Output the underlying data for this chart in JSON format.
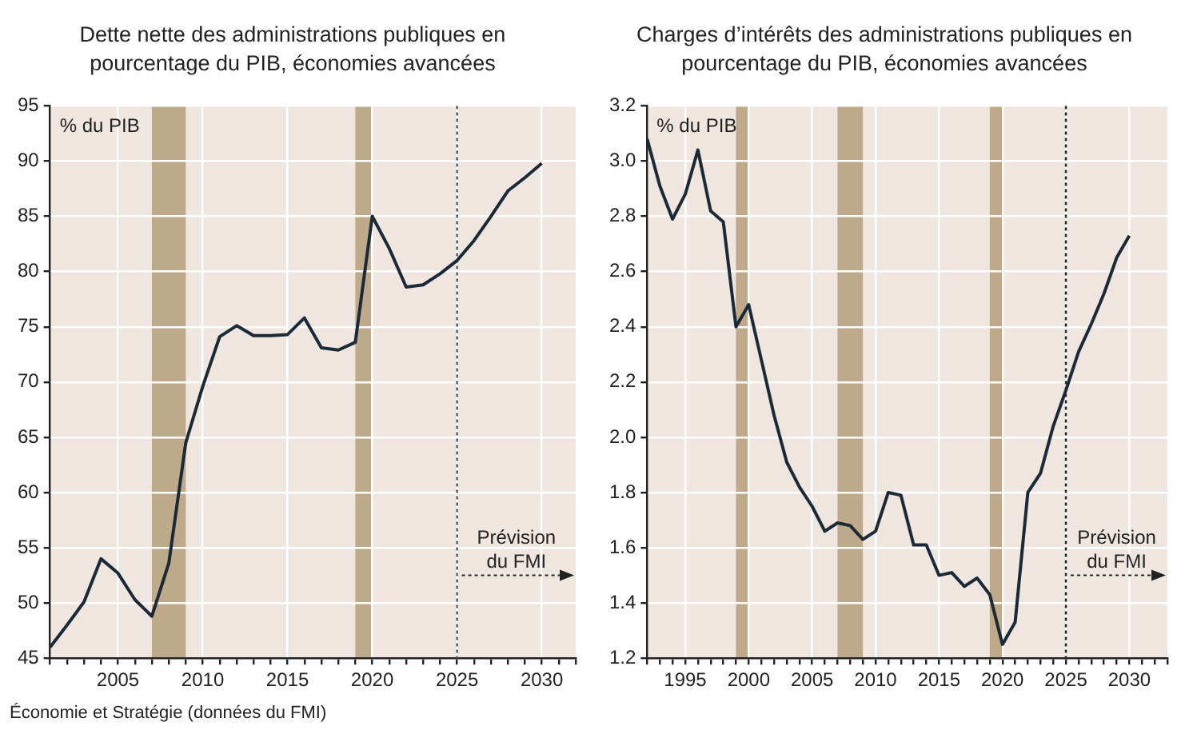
{
  "chart_data": [
    {
      "type": "line",
      "title": "Dette nette des administrations publiques en pourcentage du PIB, économies avancées",
      "ylabel": "% du PIB",
      "annotations": [
        "Prévision du FMI",
        "Économie et Stratégie (données du FMI)"
      ],
      "x": [
        2001,
        2002,
        2003,
        2004,
        2005,
        2006,
        2007,
        2008,
        2009,
        2010,
        2011,
        2012,
        2013,
        2014,
        2015,
        2016,
        2017,
        2018,
        2019,
        2020,
        2021,
        2022,
        2023,
        2024,
        2025,
        2026,
        2027,
        2028,
        2029,
        2030
      ],
      "series": [
        {
          "color": "#1c2a38",
          "values": [
            46,
            48,
            50.1,
            54,
            52.7,
            50.3,
            48.8,
            53.6,
            64.5,
            69.6,
            74.1,
            75.1,
            74.2,
            74.2,
            74.3,
            75.8,
            73.1,
            72.9,
            73.6,
            85,
            82.1,
            78.6,
            78.8,
            79.8,
            81,
            82.8,
            85,
            87.3,
            88.5,
            89.8
          ]
        }
      ],
      "xlim": [
        2001,
        2032
      ],
      "xticks": [
        {
          "value": 2001,
          "label": null
        },
        {
          "value": 2002,
          "label": null
        },
        {
          "value": 2003,
          "label": null
        },
        {
          "value": 2004,
          "label": null
        },
        2005,
        {
          "value": 2006,
          "label": null
        },
        {
          "value": 2007,
          "label": null
        },
        {
          "value": 2008,
          "label": null
        },
        {
          "value": 2009,
          "label": null
        },
        2010,
        {
          "value": 2011,
          "label": null
        },
        {
          "value": 2012,
          "label": null
        },
        {
          "value": 2013,
          "label": null
        },
        {
          "value": 2014,
          "label": null
        },
        2015,
        {
          "value": 2016,
          "label": null
        },
        {
          "value": 2017,
          "label": null
        },
        {
          "value": 2018,
          "label": null
        },
        {
          "value": 2019,
          "label": null
        },
        2020,
        {
          "value": 2021,
          "label": null
        },
        {
          "value": 2022,
          "label": null
        },
        {
          "value": 2023,
          "label": null
        },
        {
          "value": 2024,
          "label": null
        },
        2025,
        {
          "value": 2026,
          "label": null
        },
        {
          "value": 2027,
          "label": null
        },
        {
          "value": 2028,
          "label": null
        },
        {
          "value": 2029,
          "label": null
        },
        2030,
        {
          "value": 2031,
          "label": null
        },
        {
          "value": 2032,
          "label": null
        }
      ],
      "ylim": [
        45,
        95
      ],
      "yticks": [
        45,
        50,
        55,
        60,
        65,
        70,
        75,
        80,
        85,
        90,
        95
      ],
      "bands": [
        {
          "axis": "x",
          "from": 2007,
          "to": 2009,
          "color": "#bfa98b"
        },
        {
          "axis": "x",
          "from": 2019,
          "to": 2020,
          "color": "#bfa98b"
        }
      ],
      "ref_lines": [
        {
          "axis": "x",
          "value": 2025,
          "color": "#555555",
          "line_style": "dotted"
        }
      ],
      "grid": true,
      "legend": false,
      "marker": "none",
      "line_style": "solid"
    },
    {
      "type": "line",
      "title": "Charges d’intérêts des administrations publiques en pourcentage du PIB, économies avancées",
      "ylabel": "% du PIB",
      "annotations": [
        "Prévision du FMI"
      ],
      "x": [
        1992,
        1993,
        1994,
        1995,
        1996,
        1997,
        1998,
        1999,
        2000,
        2001,
        2002,
        2003,
        2004,
        2005,
        2006,
        2007,
        2008,
        2009,
        2010,
        2011,
        2012,
        2013,
        2014,
        2015,
        2016,
        2017,
        2018,
        2019,
        2020,
        2021,
        2022,
        2023,
        2024,
        2025,
        2026,
        2027,
        2028,
        2029,
        2030
      ],
      "series": [
        {
          "color": "#1c2a38",
          "values": [
            3.08,
            2.91,
            2.79,
            2.88,
            3.04,
            2.82,
            2.78,
            2.4,
            2.48,
            2.28,
            2.08,
            1.91,
            1.82,
            1.75,
            1.66,
            1.69,
            1.68,
            1.63,
            1.66,
            1.8,
            1.79,
            1.61,
            1.61,
            1.5,
            1.51,
            1.46,
            1.49,
            1.43,
            1.25,
            1.33,
            1.8,
            1.87,
            2.04,
            2.17,
            2.31,
            2.41,
            2.52,
            2.65,
            2.73
          ]
        }
      ],
      "xlim": [
        1992,
        2033
      ],
      "xticks": [
        {
          "value": 1992,
          "label": null
        },
        {
          "value": 1993,
          "label": null
        },
        {
          "value": 1994,
          "label": null
        },
        1995,
        {
          "value": 1996,
          "label": null
        },
        {
          "value": 1997,
          "label": null
        },
        {
          "value": 1998,
          "label": null
        },
        {
          "value": 1999,
          "label": null
        },
        2000,
        {
          "value": 2001,
          "label": null
        },
        {
          "value": 2002,
          "label": null
        },
        {
          "value": 2003,
          "label": null
        },
        {
          "value": 2004,
          "label": null
        },
        2005,
        {
          "value": 2006,
          "label": null
        },
        {
          "value": 2007,
          "label": null
        },
        {
          "value": 2008,
          "label": null
        },
        {
          "value": 2009,
          "label": null
        },
        2010,
        {
          "value": 2011,
          "label": null
        },
        {
          "value": 2012,
          "label": null
        },
        {
          "value": 2013,
          "label": null
        },
        {
          "value": 2014,
          "label": null
        },
        2015,
        {
          "value": 2016,
          "label": null
        },
        {
          "value": 2017,
          "label": null
        },
        {
          "value": 2018,
          "label": null
        },
        {
          "value": 2019,
          "label": null
        },
        2020,
        {
          "value": 2021,
          "label": null
        },
        {
          "value": 2022,
          "label": null
        },
        {
          "value": 2023,
          "label": null
        },
        {
          "value": 2024,
          "label": null
        },
        2025,
        {
          "value": 2026,
          "label": null
        },
        {
          "value": 2027,
          "label": null
        },
        {
          "value": 2028,
          "label": null
        },
        {
          "value": 2029,
          "label": null
        },
        2030,
        {
          "value": 2031,
          "label": null
        },
        {
          "value": 2032,
          "label": null
        },
        {
          "value": 2033,
          "label": null
        }
      ],
      "ylim": [
        1.2,
        3.2
      ],
      "yticks": [
        1.2,
        1.4,
        1.6,
        1.8,
        {
          "value": 2,
          "label": "2.0"
        },
        2.2,
        2.4,
        2.6,
        2.8,
        {
          "value": 3,
          "label": "3.0"
        },
        3.2
      ],
      "bands": [
        {
          "axis": "x",
          "from": 1999,
          "to": 2000,
          "color": "#bfa98b"
        },
        {
          "axis": "x",
          "from": 2007,
          "to": 2009,
          "color": "#bfa98b"
        },
        {
          "axis": "x",
          "from": 2019,
          "to": 2020,
          "color": "#bfa98b"
        }
      ],
      "ref_lines": [
        {
          "axis": "x",
          "value": 2025,
          "color": "#222222",
          "line_style": "dotted"
        }
      ],
      "grid": true,
      "legend": false,
      "marker": "none",
      "line_style": "solid"
    }
  ]
}
